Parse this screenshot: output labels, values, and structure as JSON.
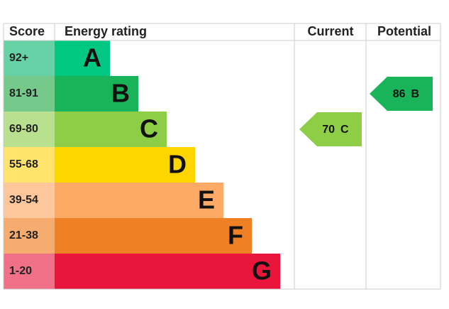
{
  "headers": {
    "score": "Score",
    "rating": "Energy rating",
    "current": "Current",
    "potential": "Potential"
  },
  "bands": [
    {
      "score": "92+",
      "letter": "A",
      "color": "#00c781",
      "light": "#66d2a6"
    },
    {
      "score": "81-91",
      "letter": "B",
      "color": "#19b459",
      "light": "#75c98b"
    },
    {
      "score": "69-80",
      "letter": "C",
      "color": "#8dce46",
      "light": "#b9e08e"
    },
    {
      "score": "55-68",
      "letter": "D",
      "color": "#ffd500",
      "light": "#ffe36b"
    },
    {
      "score": "39-54",
      "letter": "E",
      "color": "#fcaa65",
      "light": "#fdc79b"
    },
    {
      "score": "21-38",
      "letter": "F",
      "color": "#ef8023",
      "light": "#f5ac6e"
    },
    {
      "score": "1-20",
      "letter": "G",
      "color": "#e9153b",
      "light": "#f07088"
    }
  ],
  "current": {
    "value": 70,
    "letter": "C"
  },
  "potential": {
    "value": 86,
    "letter": "B"
  }
}
